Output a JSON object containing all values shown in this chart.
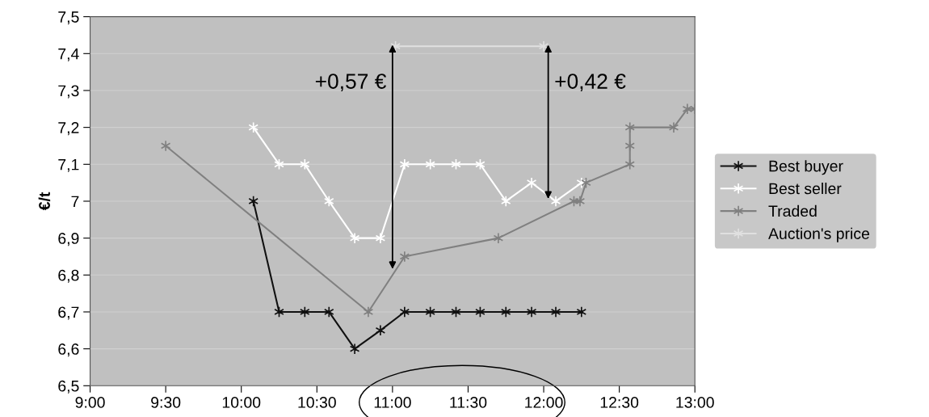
{
  "chart_data": {
    "type": "line",
    "ylabel": "€/t",
    "xlim": [
      9,
      13
    ],
    "xticks": [
      {
        "value": 9,
        "label": "9:00"
      },
      {
        "value": 9.5,
        "label": "9:30"
      },
      {
        "value": 10,
        "label": "10:00"
      },
      {
        "value": 10.5,
        "label": "10:30"
      },
      {
        "value": 11,
        "label": "11:00"
      },
      {
        "value": 11.5,
        "label": "11:30"
      },
      {
        "value": 12,
        "label": "12:00"
      },
      {
        "value": 12.5,
        "label": "12:30"
      },
      {
        "value": 13,
        "label": "13:00"
      }
    ],
    "ylim": [
      6.5,
      7.5
    ],
    "yticks": [
      {
        "value": 6.5,
        "label": "6,5"
      },
      {
        "value": 6.6,
        "label": "6,6"
      },
      {
        "value": 6.7,
        "label": "6,7"
      },
      {
        "value": 6.8,
        "label": "6,8"
      },
      {
        "value": 6.9,
        "label": "6,9"
      },
      7,
      {
        "value": 7.1,
        "label": "7,1"
      },
      {
        "value": 7.2,
        "label": "7,2"
      },
      {
        "value": 7.3,
        "label": "7,3"
      },
      {
        "value": 7.4,
        "label": "7,4"
      },
      {
        "value": 7.5,
        "label": "7,5"
      }
    ],
    "grid": "y",
    "legend": "right",
    "marker": "cross",
    "series": [
      {
        "name": "Best buyer",
        "color": "#111111",
        "x": [
          10.08,
          10.25,
          10.42,
          10.58,
          10.75,
          10.92,
          11.08,
          11.25,
          11.42,
          11.58,
          11.75,
          11.92,
          12.08,
          12.25
        ],
        "values": [
          7.0,
          6.7,
          6.7,
          6.7,
          6.6,
          6.65,
          6.7,
          6.7,
          6.7,
          6.7,
          6.7,
          6.7,
          6.7,
          6.7
        ]
      },
      {
        "name": "Best seller",
        "color": "#ffffff",
        "x": [
          10.08,
          10.25,
          10.42,
          10.58,
          10.75,
          10.92,
          11.08,
          11.25,
          11.42,
          11.58,
          11.75,
          11.92,
          12.08,
          12.25
        ],
        "values": [
          7.2,
          7.1,
          7.1,
          7.0,
          6.9,
          6.9,
          7.1,
          7.1,
          7.1,
          7.1,
          7.0,
          7.05,
          7.0,
          7.05
        ]
      },
      {
        "name": "Traded",
        "color": "#808080",
        "x": [
          9.5,
          10.84,
          11.08,
          11.7,
          12.2,
          12.24,
          12.28,
          12.57,
          12.57,
          12.57,
          12.86,
          12.95,
          13.0
        ],
        "values": [
          7.15,
          6.7,
          6.85,
          6.9,
          7.0,
          7.0,
          7.05,
          7.1,
          7.15,
          7.2,
          7.2,
          7.25,
          7.25
        ]
      },
      {
        "name": "Auction's price",
        "color": "#e0e0e0",
        "x": [
          11.02,
          12.0
        ],
        "values": [
          7.42,
          7.42
        ]
      }
    ],
    "annotations": [
      "+0,57 €",
      "+0,42 €"
    ]
  }
}
